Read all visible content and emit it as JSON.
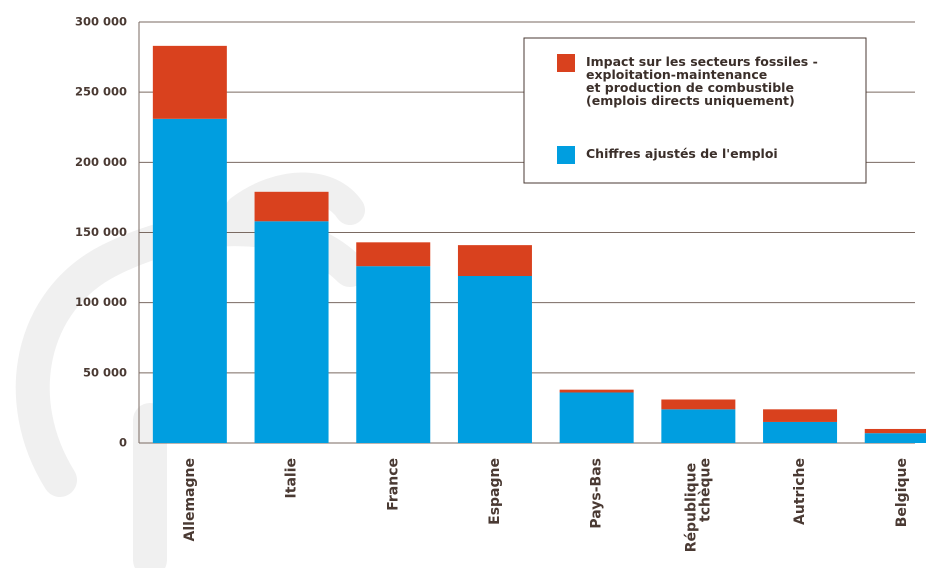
{
  "chart_data": {
    "type": "stacked_bar",
    "categories": [
      "Allemagne",
      "Italie",
      "France",
      "Espagne",
      "Pays-Bas",
      "République\ntchèque",
      "Autriche",
      "Belgique"
    ],
    "series": [
      {
        "name": "Chiffres ajustés de l'emploi",
        "color": "#009ee0",
        "values": [
          231000,
          158000,
          126000,
          119000,
          36000,
          24000,
          15000,
          7000
        ]
      },
      {
        "name": "Impact sur les secteurs fossiles -\nexploitation-maintenance\net production de combustible\n(emplois directs uniquement)",
        "color": "#d9411e",
        "values": [
          52000,
          21000,
          17000,
          22000,
          2000,
          7000,
          9000,
          3000
        ]
      }
    ],
    "ylim": [
      0,
      300000
    ],
    "yticks": [
      0,
      {
        "value": 50000,
        "label": "50 000"
      },
      {
        "value": 100000,
        "label": "100 000"
      },
      {
        "value": 150000,
        "label": "150 000"
      },
      {
        "value": 200000,
        "label": "200 000"
      },
      {
        "value": 250000,
        "label": "250 000"
      },
      {
        "value": 300000,
        "label": "300 000"
      }
    ],
    "grid": true
  }
}
